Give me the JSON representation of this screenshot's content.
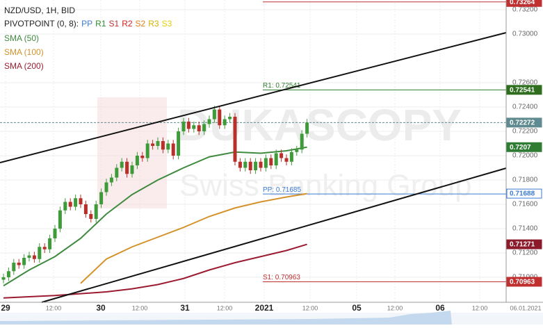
{
  "chart_data": {
    "type": "candlestick",
    "title": "NZD/USD, 1H, BID",
    "indicator_legend": {
      "label": "PIVOTPOINT (0, 8):",
      "items": [
        {
          "name": "PP",
          "color": "#3a7bd5"
        },
        {
          "name": "R1",
          "color": "#2e8b2e"
        },
        {
          "name": "S1",
          "color": "#c03030"
        },
        {
          "name": "R2",
          "color": "#d02020"
        },
        {
          "name": "S2",
          "color": "#e08020"
        },
        {
          "name": "R3",
          "color": "#d4b000"
        },
        {
          "name": "S3",
          "color": "#e8d000"
        }
      ]
    },
    "categories": [
      "29",
      "12:00",
      "30",
      "12:00",
      "31",
      "12:00",
      "2021",
      "12:00",
      "05",
      "12:00",
      "06",
      "12:00",
      "06.01.2021"
    ],
    "up_color": "#3f9a3a",
    "down_color": "#b8302a",
    "open": [
      0.7098,
      0.71,
      0.7105,
      0.7112,
      0.711,
      0.7116,
      0.7118,
      0.7115,
      0.7125,
      0.7123,
      0.7132,
      0.714,
      0.7155,
      0.7162,
      0.7158,
      0.7165,
      0.716,
      0.7152,
      0.7148,
      0.716,
      0.717,
      0.7178,
      0.7182,
      0.719,
      0.7195,
      0.7185,
      0.7192,
      0.72,
      0.7198,
      0.721,
      0.7208,
      0.7212,
      0.7205,
      0.721,
      0.72,
      0.722,
      0.7228,
      0.7222,
      0.7225,
      0.722,
      0.7226,
      0.723,
      0.7238,
      0.7225,
      0.723,
      0.7232,
      0.7195,
      0.719,
      0.7195,
      0.7188,
      0.7195,
      0.719,
      0.7198,
      0.7192,
      0.7202,
      0.7198,
      0.7195,
      0.7203,
      0.7205,
      0.7218
    ],
    "high": [
      0.7103,
      0.7108,
      0.7115,
      0.7115,
      0.7119,
      0.7121,
      0.7121,
      0.7128,
      0.7128,
      0.7135,
      0.7143,
      0.7158,
      0.7165,
      0.7165,
      0.7168,
      0.7168,
      0.7163,
      0.7155,
      0.7163,
      0.7173,
      0.7181,
      0.7185,
      0.7193,
      0.7198,
      0.7198,
      0.7195,
      0.7203,
      0.7203,
      0.7213,
      0.7213,
      0.7215,
      0.7215,
      0.7213,
      0.7213,
      0.7223,
      0.7231,
      0.7231,
      0.7228,
      0.7228,
      0.7229,
      0.7233,
      0.7241,
      0.7241,
      0.7233,
      0.7235,
      0.7235,
      0.7198,
      0.7198,
      0.7198,
      0.7198,
      0.7198,
      0.7201,
      0.7201,
      0.7205,
      0.7205,
      0.7201,
      0.7206,
      0.7208,
      0.7221,
      0.72302
    ],
    "low": [
      0.7095,
      0.7097,
      0.7102,
      0.7107,
      0.7107,
      0.7113,
      0.7112,
      0.7112,
      0.712,
      0.712,
      0.7129,
      0.7137,
      0.7152,
      0.7155,
      0.7155,
      0.7157,
      0.7149,
      0.7145,
      0.7145,
      0.7157,
      0.7167,
      0.7175,
      0.7179,
      0.7187,
      0.7182,
      0.7182,
      0.7189,
      0.7195,
      0.7195,
      0.7205,
      0.7205,
      0.7202,
      0.7202,
      0.7197,
      0.7197,
      0.7217,
      0.7219,
      0.7219,
      0.7217,
      0.7217,
      0.7223,
      0.7227,
      0.7222,
      0.7222,
      0.7227,
      0.7192,
      0.7187,
      0.7187,
      0.7185,
      0.7185,
      0.7187,
      0.7187,
      0.7189,
      0.7189,
      0.7195,
      0.7192,
      0.7192,
      0.72,
      0.7202,
      0.7215
    ],
    "close": [
      0.71,
      0.7105,
      0.7112,
      0.711,
      0.7116,
      0.7118,
      0.7115,
      0.7125,
      0.7123,
      0.7132,
      0.714,
      0.7155,
      0.7162,
      0.7158,
      0.7165,
      0.716,
      0.7152,
      0.7148,
      0.716,
      0.717,
      0.7178,
      0.7182,
      0.719,
      0.7195,
      0.7185,
      0.7192,
      0.72,
      0.7198,
      0.721,
      0.7208,
      0.7212,
      0.7205,
      0.721,
      0.72,
      0.722,
      0.7228,
      0.7222,
      0.7225,
      0.722,
      0.7226,
      0.723,
      0.7238,
      0.7225,
      0.723,
      0.7232,
      0.7195,
      0.719,
      0.7195,
      0.7188,
      0.7195,
      0.719,
      0.7198,
      0.7192,
      0.7202,
      0.7198,
      0.7195,
      0.7203,
      0.7205,
      0.7218,
      0.72272
    ],
    "series": [
      {
        "name": "SMA (50)",
        "color": "#3f8a3f",
        "x": [
          0,
          5,
          10,
          15,
          20,
          25,
          30,
          35,
          40,
          45,
          50,
          55,
          59
        ],
        "values": [
          0.7093,
          0.7106,
          0.7117,
          0.7132,
          0.7152,
          0.7168,
          0.718,
          0.719,
          0.7199,
          0.7203,
          0.7202,
          0.7204,
          0.7207
        ]
      },
      {
        "name": "SMA (100)",
        "color": "#d4922a",
        "x": [
          0,
          5,
          10,
          15,
          20,
          25,
          30,
          35,
          40,
          45,
          50,
          55,
          59
        ],
        "values": [
          null,
          null,
          null,
          0.7095,
          0.7115,
          0.7125,
          0.7133,
          0.7141,
          0.715,
          0.7157,
          0.7162,
          0.7166,
          0.71688
        ]
      },
      {
        "name": "SMA (200)",
        "color": "#9b1b30",
        "x": [
          0,
          5,
          10,
          15,
          20,
          25,
          30,
          35,
          40,
          45,
          50,
          55,
          59
        ],
        "values": [
          0.7083,
          0.7084,
          0.7085,
          0.70865,
          0.7088,
          0.70905,
          0.7094,
          0.7099,
          0.7106,
          0.7112,
          0.7117,
          0.7122,
          0.71271
        ]
      }
    ],
    "pivots": [
      {
        "label": "R2: 0.73264",
        "value": 0.73264,
        "color": "#c03030"
      },
      {
        "label": "R1: 0.72541",
        "value": 0.72541,
        "color": "#2e7d2e"
      },
      {
        "label": "PP: 0.71685",
        "value": 0.71685,
        "color": "#3a7bd5"
      },
      {
        "label": "S1: 0.70963",
        "value": 0.70963,
        "color": "#c03030"
      }
    ],
    "axis_markers": [
      {
        "value": 0.73264,
        "color": "#c03030"
      },
      {
        "value": 0.72541,
        "color": "#2e6e1e"
      },
      {
        "value": 0.72272,
        "color": "#5f8a8f"
      },
      {
        "value": 0.7207,
        "color": "#2e7d32"
      },
      {
        "value": 0.71688,
        "color": "#3a7bd5"
      },
      {
        "value": 0.71271,
        "color": "#8b1a2b"
      },
      {
        "value": 0.70963,
        "color": "#c03030"
      }
    ],
    "ylim": [
      0.708,
      0.7328
    ],
    "yticks": [
      {
        "value": 0.732,
        "label": "0.73200"
      },
      {
        "value": 0.73,
        "label": "0.73000"
      },
      {
        "value": 0.726,
        "label": "0.72600"
      },
      {
        "value": 0.724,
        "label": "0.72400"
      },
      {
        "value": 0.722,
        "label": "0.72200"
      },
      {
        "value": 0.72,
        "label": "0.72000"
      },
      {
        "value": 0.718,
        "label": "0.71800"
      },
      {
        "value": 0.716,
        "label": "0.71600"
      },
      {
        "value": 0.714,
        "label": "0.71400"
      },
      {
        "value": 0.712,
        "label": "0.71200"
      },
      {
        "value": 0.71,
        "label": "0.71000"
      }
    ],
    "grid": true,
    "watermark": {
      "title": "DUKASCOPY",
      "subtitle": "Swiss Banking Group"
    }
  }
}
